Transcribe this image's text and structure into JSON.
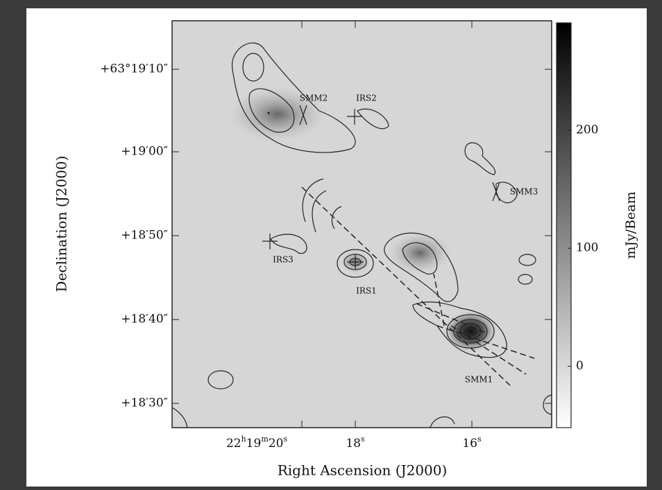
{
  "figure": {
    "y_axis_label": "Declination (J2000)",
    "x_axis_label": "Right Ascension (J2000)",
    "y_ticks": [
      "+63°19′10″",
      "+19′00″",
      "+18′50″",
      "+18′40″",
      "+18′30″"
    ],
    "x_ticks": [
      [
        {
          "text": "22"
        },
        {
          "text": "h",
          "sup": true
        },
        {
          "text": "19"
        },
        {
          "text": "m",
          "sup": true
        },
        {
          "text": "20"
        },
        {
          "text": "s",
          "sup": true
        }
      ],
      [
        {
          "text": "18"
        },
        {
          "text": "s",
          "sup": true
        }
      ],
      [
        {
          "text": "16"
        },
        {
          "text": "s",
          "sup": true
        }
      ]
    ],
    "annotations": [
      "SMM2",
      "IRS2",
      "SMM3",
      "IRS3",
      "IRS1",
      "SMM1"
    ],
    "colorbar": {
      "label": "mJy/Beam",
      "lim": [
        -52,
        291
      ],
      "ticks": [
        0,
        100,
        200
      ]
    }
  }
}
